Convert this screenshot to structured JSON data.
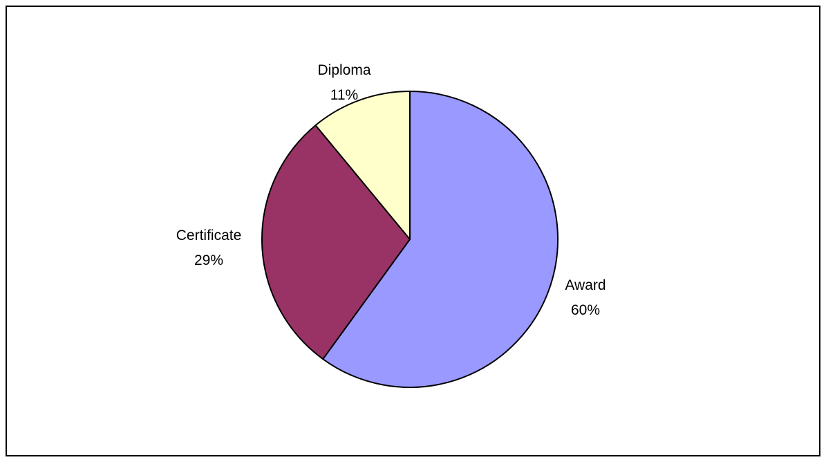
{
  "chart_data": {
    "type": "pie",
    "slices": [
      {
        "name": "Award",
        "value": 60,
        "percent_label": "60%",
        "color": "#9999ff"
      },
      {
        "name": "Certificate",
        "value": 29,
        "percent_label": "29%",
        "color": "#993366"
      },
      {
        "name": "Diploma",
        "value": 11,
        "percent_label": "11%",
        "color": "#ffffcc"
      }
    ],
    "start_angle": "12 o'clock",
    "direction": "clockwise",
    "legend": "none",
    "labels": "outside slices, category name above percentage"
  }
}
